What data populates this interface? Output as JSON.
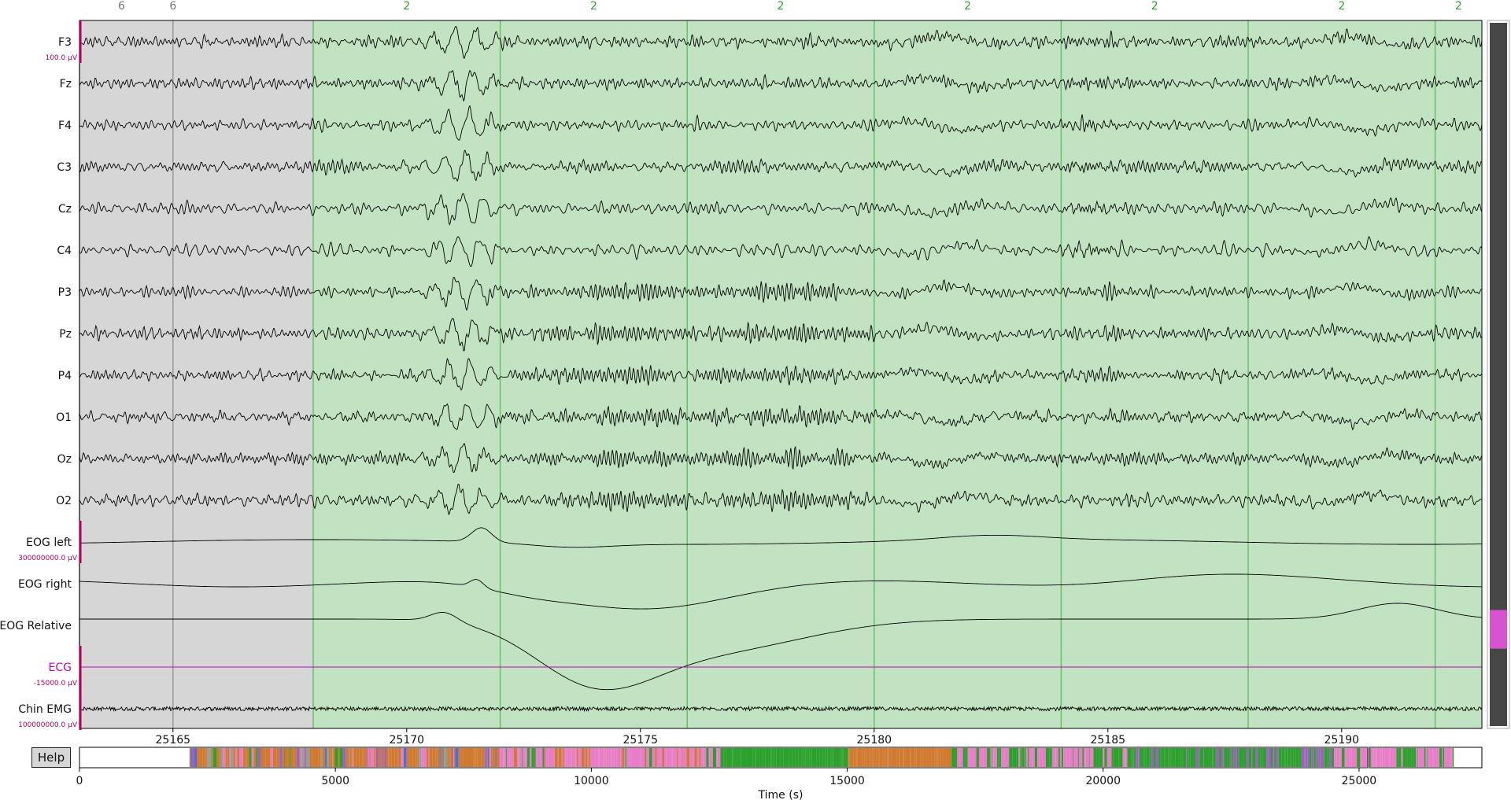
{
  "help_label": "Help",
  "time_axis": {
    "start": 25163.0,
    "end": 25193.0,
    "ticks": [
      "25165",
      "25170",
      "25175",
      "25180",
      "25185",
      "25190"
    ]
  },
  "overview_axis": {
    "max": 27400,
    "ticks": [
      "0",
      "5000",
      "10000",
      "15000",
      "20000",
      "25000"
    ],
    "label": "Time (s)",
    "data_start": 2150,
    "data_end": 26850,
    "view_start": 25163,
    "view_end": 25193
  },
  "scale_labels": {
    "eeg": "100.0 µV",
    "eog": "300000000.0 µV",
    "ecg": "-15000.0 µV",
    "emg": "100000000.0 µV"
  },
  "channels": [
    {
      "name": "F3",
      "kind": "eeg"
    },
    {
      "name": "Fz",
      "kind": "eeg"
    },
    {
      "name": "F4",
      "kind": "eeg"
    },
    {
      "name": "C3",
      "kind": "eeg"
    },
    {
      "name": "Cz",
      "kind": "eeg"
    },
    {
      "name": "C4",
      "kind": "eeg"
    },
    {
      "name": "P3",
      "kind": "eeg"
    },
    {
      "name": "Pz",
      "kind": "eeg"
    },
    {
      "name": "P4",
      "kind": "eeg"
    },
    {
      "name": "O1",
      "kind": "eeg"
    },
    {
      "name": "Oz",
      "kind": "eeg"
    },
    {
      "name": "O2",
      "kind": "eeg"
    },
    {
      "name": "EOG left",
      "kind": "eog"
    },
    {
      "name": "EOG right",
      "kind": "eog"
    },
    {
      "name": "EOG Relative",
      "kind": "eog"
    },
    {
      "name": "ECG",
      "kind": "ecg"
    },
    {
      "name": "Chin EMG",
      "kind": "emg"
    }
  ],
  "annotations": [
    {
      "label": "6",
      "label_time": 25163.9,
      "start": 25163.0,
      "end": 25168.0,
      "type": "gray"
    },
    {
      "label": "6",
      "label_time": 25165.0,
      "start": 25165.0,
      "end": 25168.0,
      "type": "gray"
    },
    {
      "label": "2",
      "label_time": 25170.0,
      "start": 25168.0,
      "end": 25172.0,
      "type": "green"
    },
    {
      "label": "2",
      "label_time": 25174.0,
      "start": 25172.0,
      "end": 25176.0,
      "type": "green"
    },
    {
      "label": "2",
      "label_time": 25178.0,
      "start": 25176.0,
      "end": 25180.0,
      "type": "green"
    },
    {
      "label": "2",
      "label_time": 25182.0,
      "start": 25180.0,
      "end": 25184.0,
      "type": "green"
    },
    {
      "label": "2",
      "label_time": 25186.0,
      "start": 25184.0,
      "end": 25188.0,
      "type": "green"
    },
    {
      "label": "2",
      "label_time": 25190.0,
      "start": 25188.0,
      "end": 25192.0,
      "type": "green"
    },
    {
      "label": "2",
      "label_time": 25192.5,
      "start": 25192.0,
      "end": 25193.0,
      "type": "green"
    }
  ],
  "scroll": {
    "position": 0.92,
    "ecg_highlight": [
      0.835,
      0.89
    ]
  },
  "colors": {
    "trace": "#000000",
    "ecg_trace": "#c000c0",
    "ecg_label": "#c000c0",
    "scale_bar": "#b0005a",
    "green_fill": "#c1e3c1",
    "green_line": "#6bbf6b",
    "green_text": "#2ca02c",
    "gray_fill": "#d6d6d6",
    "gray_line": "#999999",
    "gray_text": "#777777",
    "scrollbar_track": "#474747",
    "scrollbar_thumb": "#d654d0"
  },
  "overview_colors": [
    "#2ca02c",
    "#d07a30",
    "#e87cc8",
    "#4c6fd0",
    "#8fa0a0",
    "#a060c0"
  ]
}
